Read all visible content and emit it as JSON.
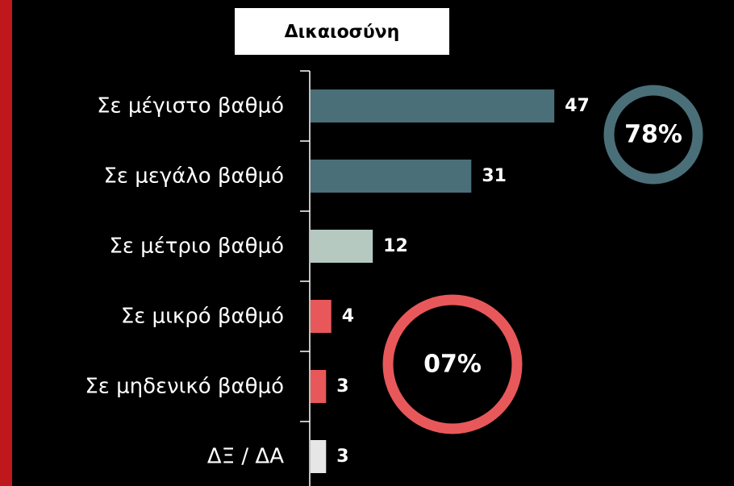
{
  "chart_data": {
    "type": "barh",
    "title": "Δικαιοσύνη",
    "categories": [
      "Σε μέγιστο βαθμό",
      "Σε μεγάλο βαθμό",
      "Σε μέτριο βαθμό",
      "Σε μικρό βαθμό",
      "Σε μηδενικό βαθμό",
      "ΔΞ / ΔΑ"
    ],
    "values": [
      47,
      31,
      12,
      4,
      3,
      3
    ],
    "colors": [
      "#4a6f78",
      "#4a6f78",
      "#b5c9c1",
      "#e8585a",
      "#e8585a",
      "#e6e6e6"
    ],
    "annotations": [
      {
        "text": "78%",
        "color": "#4a6f78"
      },
      {
        "text": "07%",
        "color": "#e8585a"
      }
    ]
  }
}
